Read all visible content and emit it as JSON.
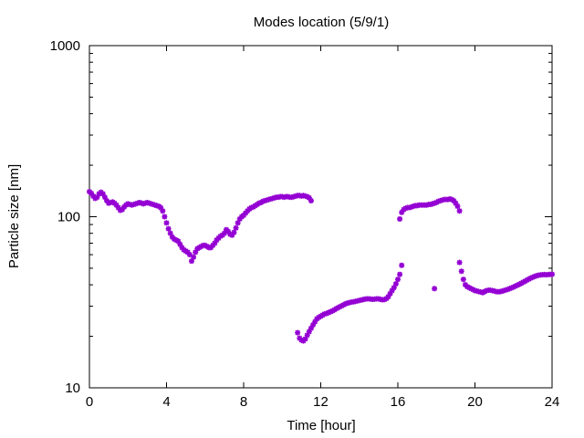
{
  "chart_data": {
    "type": "scatter",
    "title": "Modes location (5/9/1)",
    "xlabel": "Time [hour]",
    "ylabel": "Particle size [nm]",
    "xlim": [
      0,
      24
    ],
    "ylim": [
      10,
      1000
    ],
    "yscale": "log",
    "xticks": [
      0,
      4,
      8,
      12,
      16,
      20,
      24
    ],
    "xtick_labels": [
      "0",
      "4",
      "8",
      "12",
      "16",
      "20",
      "24"
    ],
    "yticks": [
      10,
      100,
      1000
    ],
    "ytick_labels": [
      "10",
      "100",
      "1000"
    ],
    "grid": false,
    "legend": "none",
    "marker_color": "#9400d3",
    "series": [
      {
        "values": [
          [
            0.0,
            140
          ],
          [
            0.1,
            137
          ],
          [
            0.2,
            132
          ],
          [
            0.3,
            128
          ],
          [
            0.4,
            130
          ],
          [
            0.5,
            136
          ],
          [
            0.6,
            139
          ],
          [
            0.7,
            136
          ],
          [
            0.8,
            130
          ],
          [
            0.9,
            124
          ],
          [
            1.0,
            120
          ],
          [
            1.1,
            121
          ],
          [
            1.2,
            122
          ],
          [
            1.3,
            120
          ],
          [
            1.4,
            117
          ],
          [
            1.5,
            113
          ],
          [
            1.6,
            109
          ],
          [
            1.7,
            110
          ],
          [
            1.8,
            114
          ],
          [
            1.9,
            117
          ],
          [
            2.0,
            119
          ],
          [
            2.1,
            118
          ],
          [
            2.2,
            117
          ],
          [
            2.3,
            118
          ],
          [
            2.4,
            119
          ],
          [
            2.5,
            120
          ],
          [
            2.6,
            121
          ],
          [
            2.7,
            120
          ],
          [
            2.8,
            119
          ],
          [
            2.9,
            120
          ],
          [
            3.0,
            121
          ],
          [
            3.1,
            120
          ],
          [
            3.2,
            119
          ],
          [
            3.3,
            118
          ],
          [
            3.4,
            117
          ],
          [
            3.5,
            116
          ],
          [
            3.6,
            115
          ],
          [
            3.7,
            113
          ],
          [
            3.8,
            108
          ],
          [
            3.9,
            100
          ],
          [
            4.0,
            92
          ],
          [
            4.1,
            85
          ],
          [
            4.2,
            80
          ],
          [
            4.3,
            76
          ],
          [
            4.4,
            74
          ],
          [
            4.5,
            73
          ],
          [
            4.6,
            72
          ],
          [
            4.7,
            69
          ],
          [
            4.8,
            66
          ],
          [
            4.9,
            64
          ],
          [
            5.0,
            63
          ],
          [
            5.1,
            62
          ],
          [
            5.2,
            60
          ],
          [
            5.3,
            55
          ],
          [
            5.4,
            58
          ],
          [
            5.5,
            62
          ],
          [
            5.6,
            65
          ],
          [
            5.7,
            66
          ],
          [
            5.8,
            67
          ],
          [
            5.9,
            68
          ],
          [
            6.0,
            68
          ],
          [
            6.1,
            67
          ],
          [
            6.2,
            66
          ],
          [
            6.3,
            66
          ],
          [
            6.4,
            68
          ],
          [
            6.5,
            70
          ],
          [
            6.6,
            73
          ],
          [
            6.7,
            75
          ],
          [
            6.8,
            77
          ],
          [
            6.9,
            78
          ],
          [
            7.0,
            80
          ],
          [
            7.1,
            84
          ],
          [
            7.2,
            82
          ],
          [
            7.3,
            79
          ],
          [
            7.4,
            78
          ],
          [
            7.5,
            81
          ],
          [
            7.6,
            86
          ],
          [
            7.7,
            92
          ],
          [
            7.8,
            97
          ],
          [
            7.9,
            100
          ],
          [
            8.0,
            102
          ],
          [
            8.1,
            105
          ],
          [
            8.2,
            108
          ],
          [
            8.3,
            111
          ],
          [
            8.4,
            113
          ],
          [
            8.5,
            114
          ],
          [
            8.6,
            116
          ],
          [
            8.7,
            118
          ],
          [
            8.8,
            120
          ],
          [
            8.9,
            121
          ],
          [
            9.0,
            123
          ],
          [
            9.1,
            124
          ],
          [
            9.2,
            125
          ],
          [
            9.3,
            126
          ],
          [
            9.4,
            127
          ],
          [
            9.5,
            128
          ],
          [
            9.6,
            129
          ],
          [
            9.7,
            130
          ],
          [
            9.8,
            130
          ],
          [
            9.9,
            131
          ],
          [
            10.0,
            131
          ],
          [
            10.1,
            130
          ],
          [
            10.2,
            131
          ],
          [
            10.3,
            131
          ],
          [
            10.4,
            130
          ],
          [
            10.5,
            130
          ],
          [
            10.6,
            131
          ],
          [
            10.7,
            132
          ],
          [
            10.8,
            133
          ],
          [
            10.9,
            133
          ],
          [
            11.0,
            132
          ],
          [
            11.1,
            133
          ],
          [
            11.2,
            132
          ],
          [
            11.3,
            131
          ],
          [
            11.4,
            129
          ],
          [
            11.5,
            124
          ]
        ]
      },
      {
        "values": [
          [
            10.8,
            21
          ],
          [
            10.9,
            19.5
          ],
          [
            11.0,
            19
          ],
          [
            11.1,
            18.8
          ],
          [
            11.2,
            19.3
          ],
          [
            11.3,
            20.3
          ],
          [
            11.4,
            21.3
          ],
          [
            11.5,
            22.3
          ],
          [
            11.6,
            23.3
          ],
          [
            11.7,
            24.3
          ],
          [
            11.8,
            25.3
          ],
          [
            11.9,
            25.8
          ],
          [
            12.0,
            26.2
          ],
          [
            12.1,
            26.6
          ],
          [
            12.2,
            27
          ],
          [
            12.3,
            27.2
          ],
          [
            12.4,
            27.5
          ],
          [
            12.5,
            27.8
          ],
          [
            12.6,
            28.1
          ],
          [
            12.7,
            28.5
          ],
          [
            12.8,
            29
          ],
          [
            12.9,
            29.4
          ],
          [
            13.0,
            29.8
          ],
          [
            13.1,
            30.2
          ],
          [
            13.2,
            30.6
          ],
          [
            13.3,
            31
          ],
          [
            13.4,
            31.3
          ],
          [
            13.5,
            31.5
          ],
          [
            13.6,
            31.7
          ],
          [
            13.7,
            31.8
          ],
          [
            13.8,
            32
          ],
          [
            13.9,
            32.2
          ],
          [
            14.0,
            32.4
          ],
          [
            14.1,
            32.6
          ],
          [
            14.2,
            32.8
          ],
          [
            14.3,
            33
          ],
          [
            14.4,
            33.1
          ],
          [
            14.5,
            33.1
          ],
          [
            14.6,
            33
          ],
          [
            14.7,
            32.9
          ],
          [
            14.8,
            33
          ],
          [
            14.9,
            33.1
          ],
          [
            15.0,
            33.1
          ],
          [
            15.1,
            32.9
          ],
          [
            15.2,
            32.7
          ],
          [
            15.3,
            32.8
          ],
          [
            15.4,
            33.2
          ],
          [
            15.5,
            34
          ],
          [
            15.6,
            35.5
          ],
          [
            15.7,
            37
          ],
          [
            15.8,
            38.5
          ],
          [
            15.9,
            40.5
          ],
          [
            16.0,
            43
          ],
          [
            16.1,
            46
          ]
        ]
      },
      {
        "values": [
          [
            16.1,
            97
          ],
          [
            16.2,
            52
          ],
          [
            16.2,
            106
          ],
          [
            16.3,
            110
          ],
          [
            16.4,
            112
          ],
          [
            16.5,
            113
          ],
          [
            16.6,
            113
          ],
          [
            16.7,
            114
          ],
          [
            16.8,
            115
          ],
          [
            16.9,
            116
          ],
          [
            17.0,
            116
          ],
          [
            17.1,
            117
          ],
          [
            17.2,
            117
          ],
          [
            17.3,
            117
          ],
          [
            17.4,
            117
          ],
          [
            17.5,
            117
          ],
          [
            17.6,
            118
          ],
          [
            17.7,
            118
          ],
          [
            17.8,
            119
          ],
          [
            17.9,
            120
          ],
          [
            18.0,
            121
          ],
          [
            18.1,
            123
          ],
          [
            18.2,
            124
          ],
          [
            18.3,
            125
          ],
          [
            18.4,
            126
          ],
          [
            18.5,
            126
          ],
          [
            18.6,
            126
          ],
          [
            18.7,
            127
          ],
          [
            18.8,
            126
          ],
          [
            18.9,
            124
          ],
          [
            19.0,
            120
          ],
          [
            19.1,
            115
          ],
          [
            19.2,
            108
          ],
          [
            17.9,
            38
          ]
        ]
      },
      {
        "values": [
          [
            19.2,
            54
          ],
          [
            19.3,
            48
          ],
          [
            19.4,
            43
          ],
          [
            19.5,
            40
          ],
          [
            19.6,
            39
          ],
          [
            19.7,
            38.5
          ],
          [
            19.8,
            38
          ],
          [
            19.9,
            37.5
          ],
          [
            20.0,
            37
          ],
          [
            20.1,
            36.8
          ],
          [
            20.2,
            36.5
          ],
          [
            20.3,
            36.3
          ],
          [
            20.4,
            36
          ],
          [
            20.5,
            36.5
          ],
          [
            20.6,
            37
          ],
          [
            20.7,
            37.2
          ],
          [
            20.8,
            37.2
          ],
          [
            20.9,
            37
          ],
          [
            21.0,
            36.8
          ],
          [
            21.1,
            36.5
          ],
          [
            21.2,
            36.4
          ],
          [
            21.3,
            36.5
          ],
          [
            21.4,
            36.7
          ],
          [
            21.5,
            37
          ],
          [
            21.6,
            37.3
          ],
          [
            21.7,
            37.6
          ],
          [
            21.8,
            38
          ],
          [
            21.9,
            38.4
          ],
          [
            22.0,
            38.8
          ],
          [
            22.1,
            39.3
          ],
          [
            22.2,
            39.8
          ],
          [
            22.3,
            40.3
          ],
          [
            22.4,
            40.8
          ],
          [
            22.5,
            41.4
          ],
          [
            22.6,
            42
          ],
          [
            22.7,
            42.6
          ],
          [
            22.8,
            43.2
          ],
          [
            22.9,
            43.8
          ],
          [
            23.0,
            44.3
          ],
          [
            23.1,
            44.8
          ],
          [
            23.2,
            45.2
          ],
          [
            23.3,
            45.5
          ],
          [
            23.4,
            45.7
          ],
          [
            23.5,
            45.8
          ],
          [
            23.6,
            45.9
          ],
          [
            23.7,
            45.8
          ],
          [
            23.8,
            45.9
          ],
          [
            23.9,
            46
          ],
          [
            24.0,
            46.1
          ]
        ]
      }
    ]
  }
}
